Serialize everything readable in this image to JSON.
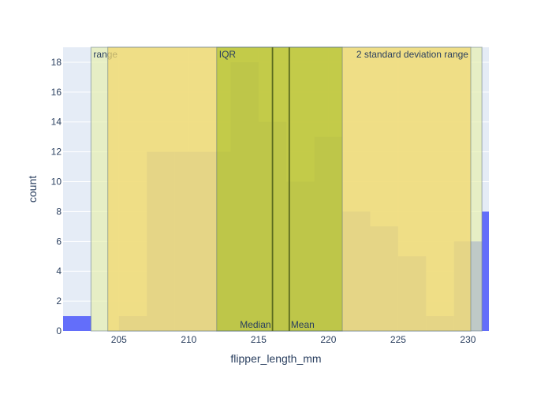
{
  "chart_data": {
    "type": "bar",
    "title": "",
    "xlabel": "flipper_length_mm",
    "ylabel": "count",
    "xlim": [
      201.0,
      231.5
    ],
    "ylim": [
      0,
      19
    ],
    "x_ticks": [
      205,
      210,
      215,
      220,
      225,
      230
    ],
    "y_ticks": [
      0,
      2,
      4,
      6,
      8,
      10,
      12,
      14,
      16,
      18
    ],
    "grid": true,
    "bar_color": "#636efa",
    "plot_background": "#e5ecf6",
    "bins": [
      {
        "x0": 201,
        "x1": 203,
        "count": 1
      },
      {
        "x0": 203,
        "x1": 205,
        "count": 0
      },
      {
        "x0": 205,
        "x1": 207,
        "count": 1
      },
      {
        "x0": 207,
        "x1": 209,
        "count": 12
      },
      {
        "x0": 209,
        "x1": 211,
        "count": 12
      },
      {
        "x0": 211,
        "x1": 213,
        "count": 12
      },
      {
        "x0": 213,
        "x1": 215,
        "count": 18
      },
      {
        "x0": 215,
        "x1": 217,
        "count": 14
      },
      {
        "x0": 217,
        "x1": 219,
        "count": 10
      },
      {
        "x0": 219,
        "x1": 221,
        "count": 13
      },
      {
        "x0": 221,
        "x1": 223,
        "count": 8
      },
      {
        "x0": 223,
        "x1": 225,
        "count": 7
      },
      {
        "x0": 225,
        "x1": 227,
        "count": 5
      },
      {
        "x0": 227,
        "x1": 229,
        "count": 1
      },
      {
        "x0": 229,
        "x1": 231,
        "count": 6
      },
      {
        "x0": 231,
        "x1": 233,
        "count": 8
      }
    ],
    "shaded_ranges": [
      {
        "label": "range",
        "x0": 203.0,
        "x1": 231.0,
        "fill": "#e7f0b0",
        "opacity": 0.7,
        "label_position": "top-left"
      },
      {
        "label": "2 standard deviation range",
        "x0": 204.2,
        "x1": 230.2,
        "fill": "#f2d870",
        "opacity": 0.75,
        "label_position": "top-right"
      },
      {
        "label": "IQR",
        "x0": 212.0,
        "x1": 221.0,
        "fill": "#8fb400",
        "opacity": 0.45,
        "label_position": "top-left"
      }
    ],
    "lines": [
      {
        "label": "Median",
        "x": 216.0,
        "color": "#5c6b1f",
        "label_position": "bottom-left"
      },
      {
        "label": "Mean",
        "x": 217.2,
        "color": "#5c6b1f",
        "label_position": "bottom-right"
      }
    ]
  }
}
